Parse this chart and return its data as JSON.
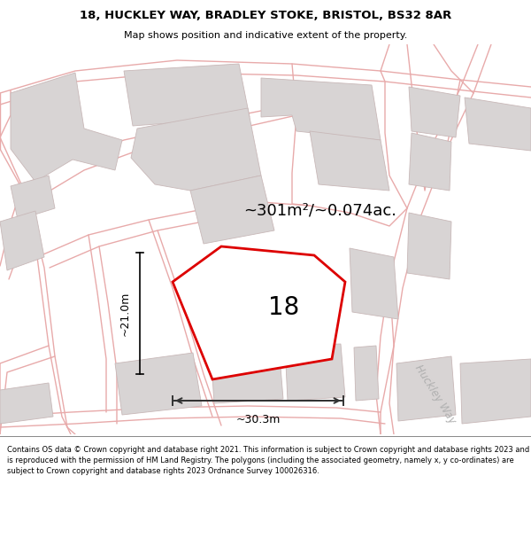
{
  "title_line1": "18, HUCKLEY WAY, BRADLEY STOKE, BRISTOL, BS32 8AR",
  "title_line2": "Map shows position and indicative extent of the property.",
  "area_label": "~301m²/~0.074ac.",
  "property_number": "18",
  "dim_vertical": "~21.0m",
  "dim_horizontal": "~30.3m",
  "street_label": "Huckley Way",
  "footer_text": "Contains OS data © Crown copyright and database right 2021. This information is subject to Crown copyright and database rights 2023 and is reproduced with the permission of HM Land Registry. The polygons (including the associated geometry, namely x, y co-ordinates) are subject to Crown copyright and database rights 2023 Ordnance Survey 100026316.",
  "bg_color": "#ffffff",
  "map_bg": "#f7f5f5",
  "road_color": "#e8aaaa",
  "building_color": "#d8d4d4",
  "building_edge": "#c8b8b8",
  "highlight_color": "#dd0000",
  "title_bg": "#ffffff",
  "footer_bg": "#ffffff"
}
